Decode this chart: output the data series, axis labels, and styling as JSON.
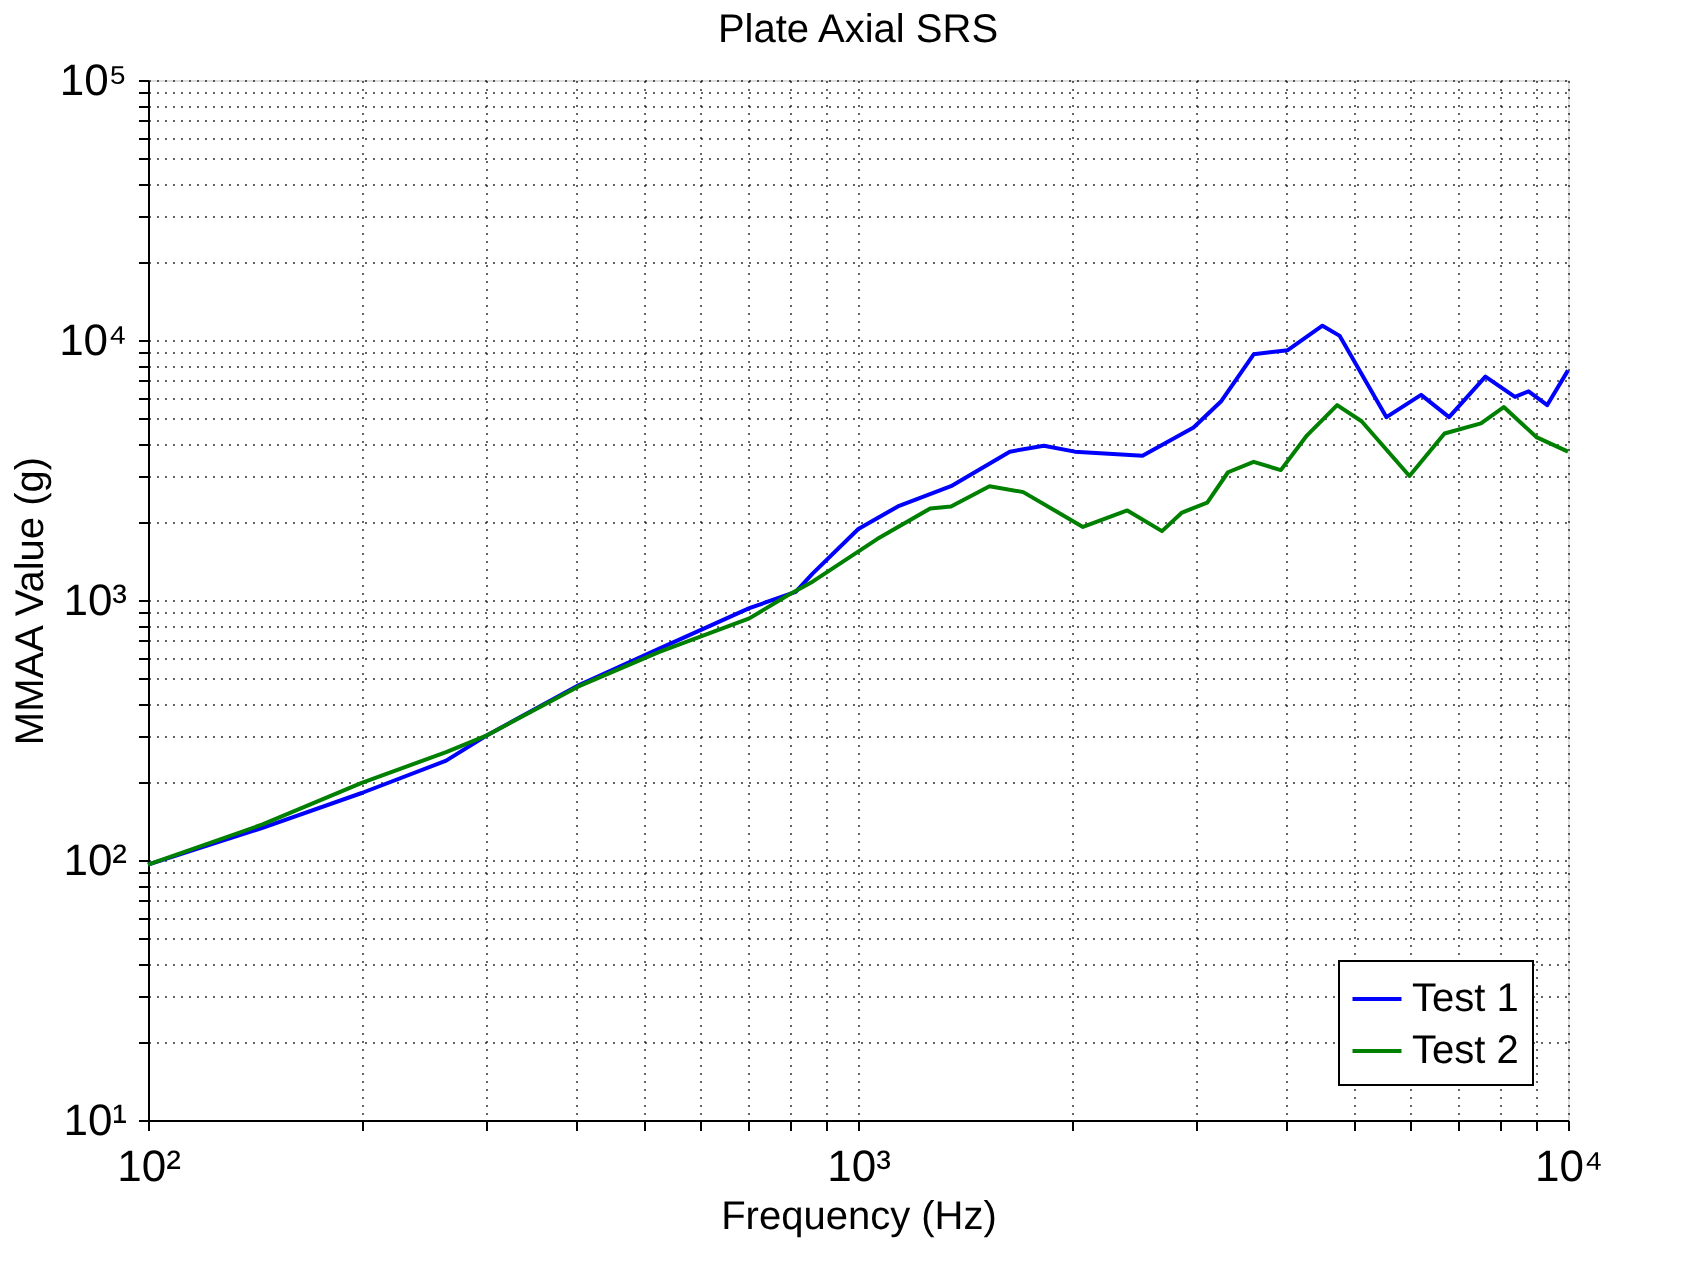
{
  "chart_data": {
    "type": "line",
    "title": "Plate Axial SRS",
    "xlabel": "Frequency (Hz)",
    "ylabel": "MMAA Value (g)",
    "log": "xy",
    "grid": true,
    "legend": "bottom right",
    "line_style": "solid",
    "marker": "none",
    "xlim": [
      100,
      10000
    ],
    "ylim": [
      10,
      100000
    ],
    "xticks": [
      {
        "value": 100,
        "label": "10²"
      },
      {
        "value": 200,
        "label": null
      },
      {
        "value": 300,
        "label": null
      },
      {
        "value": 400,
        "label": null
      },
      {
        "value": 500,
        "label": null
      },
      {
        "value": 600,
        "label": null
      },
      {
        "value": 700,
        "label": null
      },
      {
        "value": 800,
        "label": null
      },
      {
        "value": 900,
        "label": null
      },
      {
        "value": 1000,
        "label": "10³"
      },
      {
        "value": 2000,
        "label": null
      },
      {
        "value": 3000,
        "label": null
      },
      {
        "value": 4000,
        "label": null
      },
      {
        "value": 5000,
        "label": null
      },
      {
        "value": 6000,
        "label": null
      },
      {
        "value": 7000,
        "label": null
      },
      {
        "value": 8000,
        "label": null
      },
      {
        "value": 9000,
        "label": null
      },
      {
        "value": 10000,
        "label": "10⁴"
      }
    ],
    "yticks": [
      {
        "value": 10,
        "label": "10¹"
      },
      {
        "value": 20,
        "label": null
      },
      {
        "value": 30,
        "label": null
      },
      {
        "value": 40,
        "label": null
      },
      {
        "value": 50,
        "label": null
      },
      {
        "value": 60,
        "label": null
      },
      {
        "value": 70,
        "label": null
      },
      {
        "value": 80,
        "label": null
      },
      {
        "value": 90,
        "label": null
      },
      {
        "value": 100,
        "label": "10²"
      },
      {
        "value": 200,
        "label": null
      },
      {
        "value": 300,
        "label": null
      },
      {
        "value": 400,
        "label": null
      },
      {
        "value": 500,
        "label": null
      },
      {
        "value": 600,
        "label": null
      },
      {
        "value": 700,
        "label": null
      },
      {
        "value": 800,
        "label": null
      },
      {
        "value": 900,
        "label": null
      },
      {
        "value": 1000,
        "label": "10³"
      },
      {
        "value": 2000,
        "label": null
      },
      {
        "value": 3000,
        "label": null
      },
      {
        "value": 4000,
        "label": null
      },
      {
        "value": 5000,
        "label": null
      },
      {
        "value": 6000,
        "label": null
      },
      {
        "value": 7000,
        "label": null
      },
      {
        "value": 8000,
        "label": null
      },
      {
        "value": 9000,
        "label": null
      },
      {
        "value": 10000,
        "label": "10⁴"
      },
      {
        "value": 20000,
        "label": null
      },
      {
        "value": 30000,
        "label": null
      },
      {
        "value": 40000,
        "label": null
      },
      {
        "value": 50000,
        "label": null
      },
      {
        "value": 60000,
        "label": null
      },
      {
        "value": 70000,
        "label": null
      },
      {
        "value": 80000,
        "label": null
      },
      {
        "value": 90000,
        "label": null
      },
      {
        "value": 100000,
        "label": "10⁵"
      }
    ],
    "series": [
      {
        "name": "Test 1",
        "color": "#0000ff",
        "x": [
          100,
          145,
          200,
          263,
          299,
          404,
          524,
          703,
          817,
          863,
          1001,
          1138,
          1352,
          1636,
          1827,
          2020,
          2516,
          2969,
          3250,
          3608,
          4030,
          4510,
          4770,
          5550,
          6210,
          6800,
          7650,
          8420,
          8800,
          9350,
          10000
        ],
        "values": [
          96,
          133,
          181,
          241,
          300,
          470,
          649,
          930,
          1075,
          1263,
          1876,
          2290,
          2740,
          3720,
          3920,
          3720,
          3590,
          4610,
          5830,
          8810,
          9140,
          11350,
          10370,
          5050,
          6150,
          5050,
          7230,
          6040,
          6350,
          5620,
          7640
        ]
      },
      {
        "name": "Test 2",
        "color": "#008000",
        "x": [
          100,
          145,
          200,
          263,
          299,
          404,
          524,
          703,
          800,
          863,
          1064,
          1264,
          1352,
          1532,
          1709,
          2074,
          2395,
          2680,
          2860,
          3104,
          3320,
          3608,
          3940,
          4290,
          4730,
          5120,
          5980,
          6700,
          7540,
          8120,
          9040,
          10000
        ],
        "values": [
          96,
          137,
          198,
          260,
          300,
          465,
          630,
          850,
          1050,
          1176,
          1715,
          2250,
          2290,
          2740,
          2600,
          1910,
          2210,
          1840,
          2170,
          2370,
          3100,
          3400,
          3160,
          4300,
          5620,
          4870,
          3000,
          4370,
          4780,
          5520,
          4220,
          3720
        ]
      }
    ]
  }
}
